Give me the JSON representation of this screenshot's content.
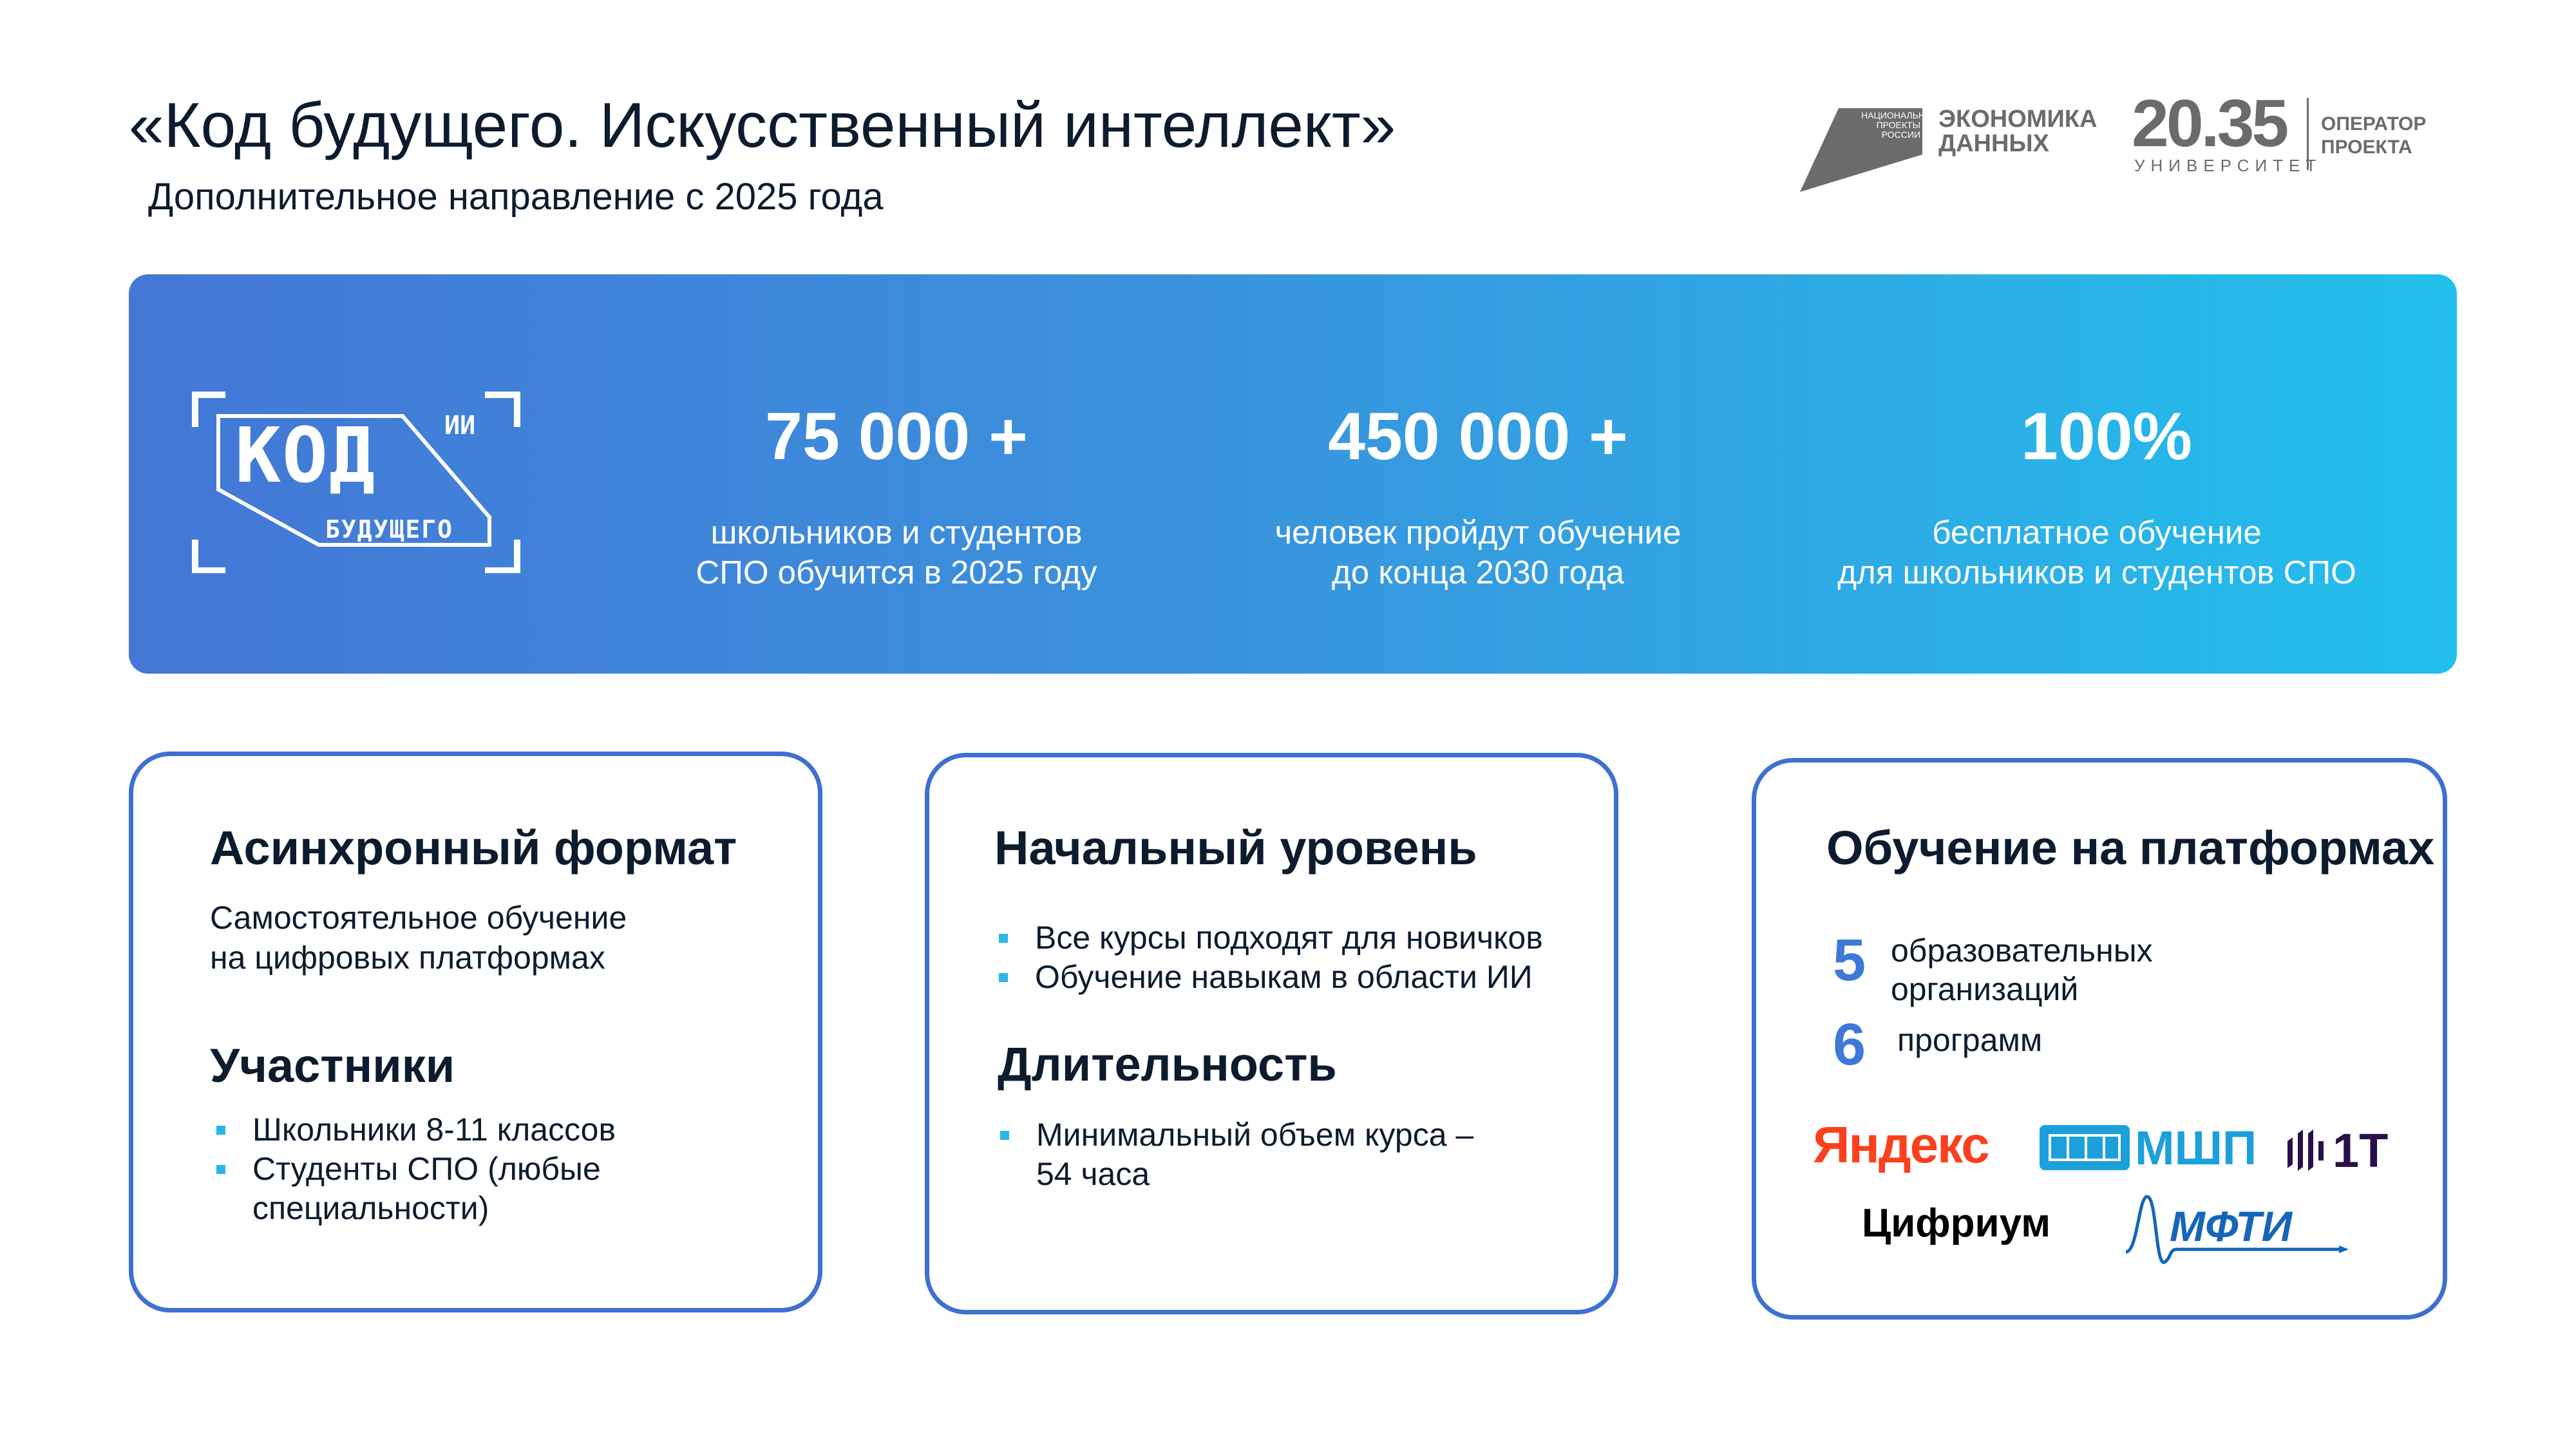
{
  "header": {
    "title": "«Код будущего. Искусственный интеллект»",
    "subtitle": "Дополнительное направление с 2025 года",
    "logos": {
      "national_projects": "НАЦИОНАЛЬНЫЕ ПРОЕКТЫ РОССИИ",
      "economy_line1": "ЭКОНОМИКА",
      "economy_line2": "ДАННЫХ",
      "university_number": "20.35",
      "university_label": "УНИВЕРСИТЕТ",
      "operator_line1": "ОПЕРАТОР",
      "operator_line2": "ПРОЕКТА"
    }
  },
  "banner": {
    "logo": {
      "main": "КОД",
      "superscript": "ИИ",
      "sub": "БУДУЩЕГО"
    },
    "stats": [
      {
        "value": "75 000 +",
        "line1": "школьников и студентов",
        "line2": "СПО обучится в 2025 году"
      },
      {
        "value": "450 000 +",
        "line1": "человек пройдут обучение",
        "line2": "до конца 2030 года"
      },
      {
        "value": "100%",
        "line1": "бесплатное обучение",
        "line2": "для школьников и студентов СПО"
      }
    ],
    "colors": {
      "gradient_start": "#4477d6",
      "gradient_end": "#22c0ec"
    }
  },
  "cards": [
    {
      "heading": "Асинхронный формат",
      "text_line1": "Самостоятельное обучение",
      "text_line2": "на цифровых платформах",
      "heading2": "Участники",
      "bullets": [
        "Школьники 8-11 классов",
        "Студенты СПО (любые",
        "специальности)"
      ]
    },
    {
      "heading": "Начальный уровень",
      "bullets": [
        "Все курсы подходят для новичков",
        "Обучение навыкам в области ИИ"
      ],
      "heading2": "Длительность",
      "bullets2": [
        "Минимальный объем курса –",
        "54 часа"
      ]
    },
    {
      "heading": "Обучение на платформах",
      "count1": "5",
      "count1_line1": "образовательных",
      "count1_line2": "организаций",
      "count2": "6",
      "count2_label": "программ",
      "partners": [
        "Яндекс",
        "МШП",
        "1T",
        "Цифриум",
        "МФТИ"
      ]
    }
  ],
  "colors": {
    "accent": "#3e78d8",
    "card_border": "#3e6fd1",
    "bullet": "#29b6e8",
    "text": "#0d1b2e"
  }
}
